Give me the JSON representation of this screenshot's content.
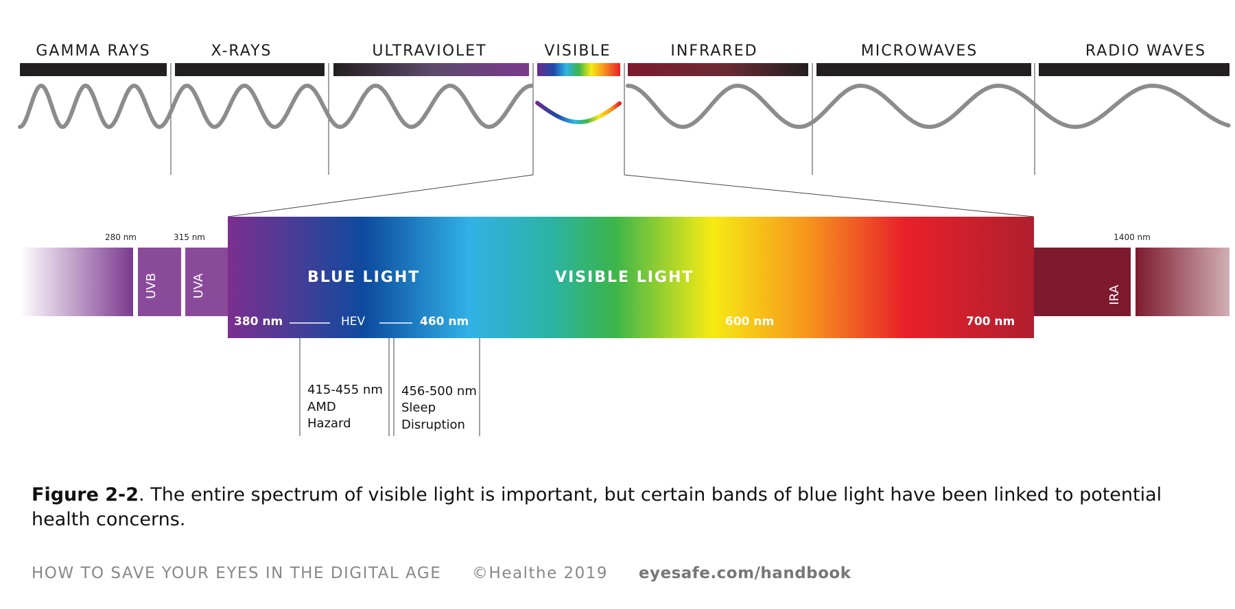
{
  "spectrum_bands": [
    {
      "label": "GAMMA RAYS"
    },
    {
      "label": "X-RAYS"
    },
    {
      "label": "ULTRAVIOLET"
    },
    {
      "label": "VISIBLE"
    },
    {
      "label": "INFRARED"
    },
    {
      "label": "MICROWAVES"
    },
    {
      "label": "RADIO WAVES"
    }
  ],
  "detail": {
    "nm_280": "280 nm",
    "nm_315": "315 nm",
    "nm_1400": "1400 nm",
    "uvb": "UVB",
    "uva": "UVA",
    "ira": "IRA",
    "blue_light": "BLUE LIGHT",
    "visible_light": "VISIBLE LIGHT",
    "nm_380": "380 nm",
    "hev": "HEV",
    "nm_460": "460 nm",
    "nm_600": "600 nm",
    "nm_700": "700 nm"
  },
  "callouts": {
    "amd_range": "415-455 nm",
    "amd_line1": "AMD",
    "amd_line2": "Hazard",
    "sleep_range": "456-500 nm",
    "sleep_line1": "Sleep",
    "sleep_line2": "Disruption"
  },
  "caption": {
    "figure": "Figure 2-2",
    "text": ". The entire spectrum of visible light is important, but certain bands of blue light have been linked to potential health concerns."
  },
  "footer": {
    "book": "HOW TO SAVE YOUR EYES IN THE DIGITAL AGE",
    "copyright": "©Healthe 2019",
    "url": "eyesafe.com/handbook"
  },
  "colors": {
    "wave": "#8c8c8c",
    "band_bar": "#231f20",
    "uv_purple": "#7b3a8e",
    "ir_red": "#7d1a2e"
  }
}
